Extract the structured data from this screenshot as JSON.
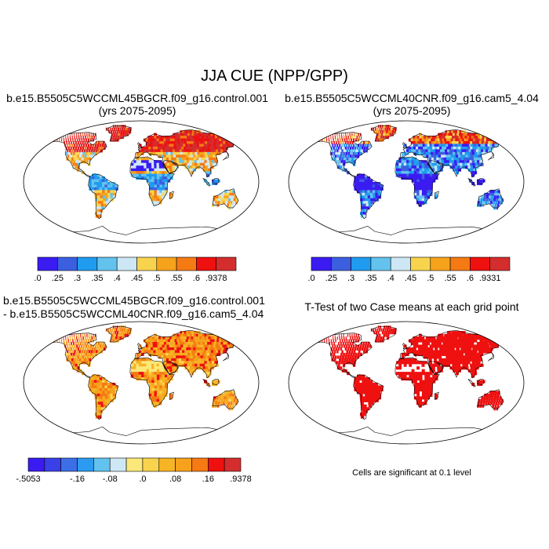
{
  "figure": {
    "main_title": "JJA CUE (NPP/GPP)",
    "note": "Cells are significant at 0.1 level"
  },
  "colors": {
    "seq": [
      "#3a1cf2",
      "#3c5fe0",
      "#1f9cf0",
      "#63c2ee",
      "#cde7f5",
      "#f8d44e",
      "#f7a21c",
      "#f57a13",
      "#ef1010",
      "#d42d2d"
    ],
    "diff": [
      "#3a1cf2",
      "#3a40e8",
      "#3c6ee6",
      "#2b9af0",
      "#63c2ee",
      "#cde7f5",
      "#fbe87a",
      "#f8d44e",
      "#f7b425",
      "#f7a21c",
      "#f57a13",
      "#ef1010",
      "#d42d2d"
    ],
    "land_outline": "#000000",
    "globe_outline": "#000000",
    "sig": "#ef1010"
  },
  "panels": [
    {
      "title1": "b.e15.B5505C5WCCML45BGCR.f09_g16.control.001",
      "title2": "(yrs 2075-2095)",
      "scheme": "warm"
    },
    {
      "title1": "b.e15.B5505C5WCCML40CNR.f09_g16.cam5_4.04",
      "title2": "(yrs 2075-2095)",
      "scheme": "cool"
    },
    {
      "title1": "b.e15.B5505C5WCCML45BGCR.f09_g16.control.001",
      "title2": "- b.e15.B5505C5WCCML40CNR.f09_g16.cam5_4.04",
      "scheme": "diff"
    },
    {
      "title1": "T-Test of two Case means at each grid point",
      "scheme": "sig"
    }
  ],
  "chart_data": [
    {
      "type": "heatmap",
      "title": "b.e15.B5505C5WCCML45BGCR.f09_g16.control.001 (yrs 2075-2095)",
      "colorbar": {
        "levels": [
          0,
          0.25,
          0.3,
          0.35,
          0.4,
          0.45,
          0.5,
          0.55,
          0.6,
          0.9378
        ],
        "labels": [
          ".0",
          ".25",
          ".3",
          ".35",
          ".4",
          ".45",
          ".5",
          ".55",
          ".6",
          ".9378"
        ]
      }
    },
    {
      "type": "heatmap",
      "title": "b.e15.B5505C5WCCML40CNR.f09_g16.cam5_4.04 (yrs 2075-2095)",
      "colorbar": {
        "levels": [
          0,
          0.25,
          0.3,
          0.35,
          0.4,
          0.45,
          0.5,
          0.55,
          0.6,
          0.9331
        ],
        "labels": [
          ".0",
          ".25",
          ".3",
          ".35",
          ".4",
          ".45",
          ".5",
          ".55",
          ".6",
          ".9331"
        ]
      }
    },
    {
      "type": "heatmap",
      "title": "b.e15.B5505C5WCCML45BGCR.f09_g16.control.001 - b.e15.B5505C5WCCML40CNR.f09_g16.cam5_4.04",
      "colorbar": {
        "levels": [
          -0.5053,
          -0.16,
          -0.08,
          0.0,
          0.08,
          0.16,
          0.9378
        ],
        "labels": [
          "-.5053",
          "-.16",
          "-.08",
          ".0",
          ".08",
          ".16",
          ".9378"
        ]
      }
    },
    {
      "type": "heatmap",
      "title": "T-Test of two Case means at each grid point",
      "colorbar": null
    }
  ]
}
